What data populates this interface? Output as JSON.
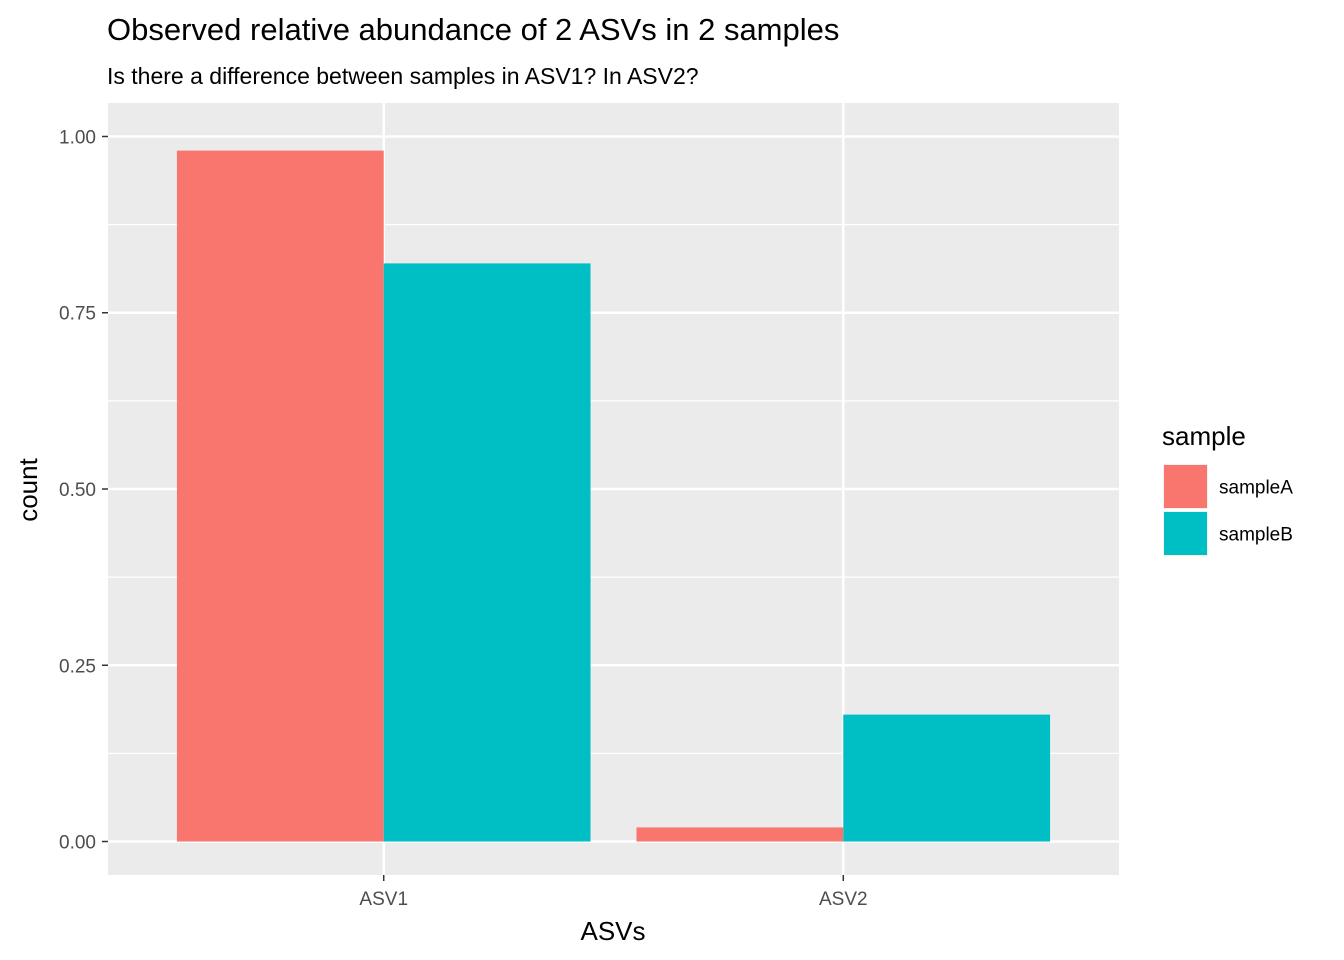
{
  "chart_data": {
    "type": "bar",
    "title": "Observed relative abundance of 2 ASVs in 2 samples",
    "subtitle": "Is there a difference between samples in ASV1? In ASV2?",
    "xlabel": "ASVs",
    "ylabel": "count",
    "categories": [
      "ASV1",
      "ASV2"
    ],
    "series": [
      {
        "name": "sampleA",
        "color": "#F8766D",
        "values": [
          0.98,
          0.02
        ]
      },
      {
        "name": "sampleB",
        "color": "#00BFC4",
        "values": [
          0.82,
          0.18
        ]
      }
    ],
    "ylim": [
      -0.0475,
      1.0475
    ],
    "yticks": [
      0.0,
      0.25,
      0.5,
      0.75,
      1.0
    ],
    "ytick_labels": [
      "0.00",
      "0.25",
      "0.50",
      "0.75",
      "1.00"
    ],
    "legend": {
      "title": "sample",
      "position": "right",
      "items": [
        "sampleA",
        "sampleB"
      ]
    },
    "grid": true,
    "panel_background": "#EBEBEB",
    "grid_color": "#FFFFFF"
  }
}
